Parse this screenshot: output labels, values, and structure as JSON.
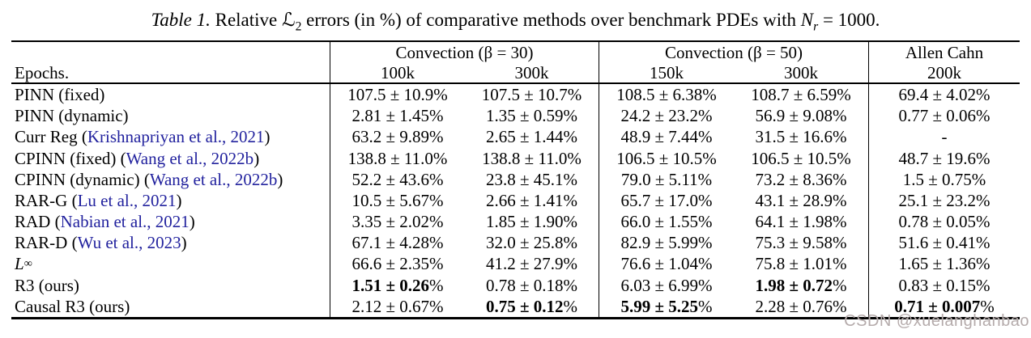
{
  "caption": {
    "label": "Table 1.",
    "part1": "Relative",
    "math_l": "ℒ",
    "math_l_sub": "2",
    "part2": "errors (in %) of comparative methods over benchmark PDEs with",
    "math_n": "N",
    "math_n_sub": "r",
    "part3": "= 1000."
  },
  "table": {
    "epochs_label": "Epochs.",
    "groups": [
      {
        "label": "Convection (β = 30)",
        "subs": [
          "100k",
          "300k"
        ]
      },
      {
        "label": "Convection (β = 50)",
        "subs": [
          "150k",
          "300k"
        ]
      },
      {
        "label": "Allen Cahn",
        "subs": [
          "200k"
        ]
      }
    ],
    "rows": [
      {
        "method": "PINN (fixed)",
        "citation": null,
        "values": [
          {
            "v": "107.5 ± 10.9",
            "pct": true,
            "b": false
          },
          {
            "v": "107.5 ± 10.7",
            "pct": true,
            "b": false
          },
          {
            "v": "108.5 ± 6.38",
            "pct": true,
            "b": false
          },
          {
            "v": "108.7 ± 6.59",
            "pct": true,
            "b": false
          },
          {
            "v": "69.4 ± 4.02",
            "pct": true,
            "b": false
          }
        ]
      },
      {
        "method": "PINN (dynamic)",
        "citation": null,
        "values": [
          {
            "v": "2.81 ± 1.45",
            "pct": true,
            "b": false
          },
          {
            "v": "1.35 ± 0.59",
            "pct": true,
            "b": false
          },
          {
            "v": "24.2 ± 23.2",
            "pct": true,
            "b": false
          },
          {
            "v": "56.9 ± 9.08",
            "pct": true,
            "b": false
          },
          {
            "v": "0.77 ± 0.06",
            "pct": true,
            "b": false
          }
        ]
      },
      {
        "method": "Curr Reg",
        "citation": "Krishnapriyan et al., 2021",
        "values": [
          {
            "v": "63.2 ± 9.89",
            "pct": true,
            "b": false
          },
          {
            "v": "2.65 ± 1.44",
            "pct": true,
            "b": false
          },
          {
            "v": "48.9 ± 7.44",
            "pct": true,
            "b": false
          },
          {
            "v": "31.5 ± 16.6",
            "pct": true,
            "b": false
          },
          {
            "v": "-",
            "pct": false,
            "b": false
          }
        ]
      },
      {
        "method": "CPINN (fixed)",
        "citation": "Wang et al., 2022b",
        "values": [
          {
            "v": "138.8 ± 11.0",
            "pct": true,
            "b": false
          },
          {
            "v": "138.8 ± 11.0",
            "pct": true,
            "b": false
          },
          {
            "v": "106.5 ± 10.5",
            "pct": true,
            "b": false
          },
          {
            "v": "106.5 ± 10.5",
            "pct": true,
            "b": false
          },
          {
            "v": "48.7 ± 19.6",
            "pct": true,
            "b": false
          }
        ]
      },
      {
        "method": "CPINN (dynamic)",
        "citation": "Wang et al., 2022b",
        "values": [
          {
            "v": "52.2 ± 43.6",
            "pct": true,
            "b": false
          },
          {
            "v": "23.8 ± 45.1",
            "pct": true,
            "b": false
          },
          {
            "v": "79.0 ± 5.11",
            "pct": true,
            "b": false
          },
          {
            "v": "73.2 ± 8.36",
            "pct": true,
            "b": false
          },
          {
            "v": "1.5 ± 0.75",
            "pct": true,
            "b": false
          }
        ]
      },
      {
        "method": "RAR-G",
        "citation": "Lu et al., 2021",
        "values": [
          {
            "v": "10.5 ± 5.67",
            "pct": true,
            "b": false
          },
          {
            "v": "2.66 ± 1.41",
            "pct": true,
            "b": false
          },
          {
            "v": "65.7 ± 17.0",
            "pct": true,
            "b": false
          },
          {
            "v": "43.1 ± 28.9",
            "pct": true,
            "b": false
          },
          {
            "v": "25.1 ± 23.2",
            "pct": true,
            "b": false
          }
        ]
      },
      {
        "method": "RAD",
        "citation": "Nabian et al., 2021",
        "values": [
          {
            "v": "3.35 ± 2.02",
            "pct": true,
            "b": false
          },
          {
            "v": "1.85 ± 1.90",
            "pct": true,
            "b": false
          },
          {
            "v": "66.0 ± 1.55",
            "pct": true,
            "b": false
          },
          {
            "v": "64.1 ± 1.98",
            "pct": true,
            "b": false
          },
          {
            "v": "0.78 ± 0.05",
            "pct": true,
            "b": false
          }
        ]
      },
      {
        "method": "RAR-D",
        "citation": "Wu et al., 2023",
        "values": [
          {
            "v": "67.1 ± 4.28",
            "pct": true,
            "b": false
          },
          {
            "v": "32.0 ± 25.8",
            "pct": true,
            "b": false
          },
          {
            "v": "82.9 ± 5.99",
            "pct": true,
            "b": false
          },
          {
            "v": "75.3 ± 9.58",
            "pct": true,
            "b": false
          },
          {
            "v": "51.6 ± 0.41",
            "pct": true,
            "b": false
          }
        ]
      },
      {
        "method": "L",
        "sup": "∞",
        "italic": true,
        "citation": null,
        "values": [
          {
            "v": "66.6 ± 2.35",
            "pct": true,
            "b": false
          },
          {
            "v": "41.2 ± 27.9",
            "pct": true,
            "b": false
          },
          {
            "v": "76.6 ± 1.04",
            "pct": true,
            "b": false
          },
          {
            "v": "75.8 ± 1.01",
            "pct": true,
            "b": false
          },
          {
            "v": "1.65 ± 1.36",
            "pct": true,
            "b": false
          }
        ]
      },
      {
        "method": "R3 (ours)",
        "citation": null,
        "values": [
          {
            "v": "1.51 ± 0.26",
            "pct": true,
            "b": true
          },
          {
            "v": "0.78 ± 0.18",
            "pct": true,
            "b": false
          },
          {
            "v": "6.03 ± 6.99",
            "pct": true,
            "b": false
          },
          {
            "v": "1.98 ± 0.72",
            "pct": true,
            "b": true
          },
          {
            "v": "0.83 ± 0.15",
            "pct": true,
            "b": false
          }
        ]
      },
      {
        "method": "Causal R3 (ours)",
        "citation": null,
        "values": [
          {
            "v": "2.12 ± 0.67",
            "pct": true,
            "b": false
          },
          {
            "v": "0.75 ± 0.12",
            "pct": true,
            "b": true
          },
          {
            "v": "5.99 ± 5.25",
            "pct": true,
            "b": true
          },
          {
            "v": "2.28 ± 0.76",
            "pct": true,
            "b": false
          },
          {
            "v": "0.71 ± 0.007",
            "pct": true,
            "b": true
          }
        ]
      }
    ]
  },
  "watermark": {
    "text": "CSDN @xuelanghanbao"
  },
  "colors": {
    "citation": "#22229e",
    "text": "#000000",
    "rule": "#000000",
    "watermark": "#b5abab"
  }
}
